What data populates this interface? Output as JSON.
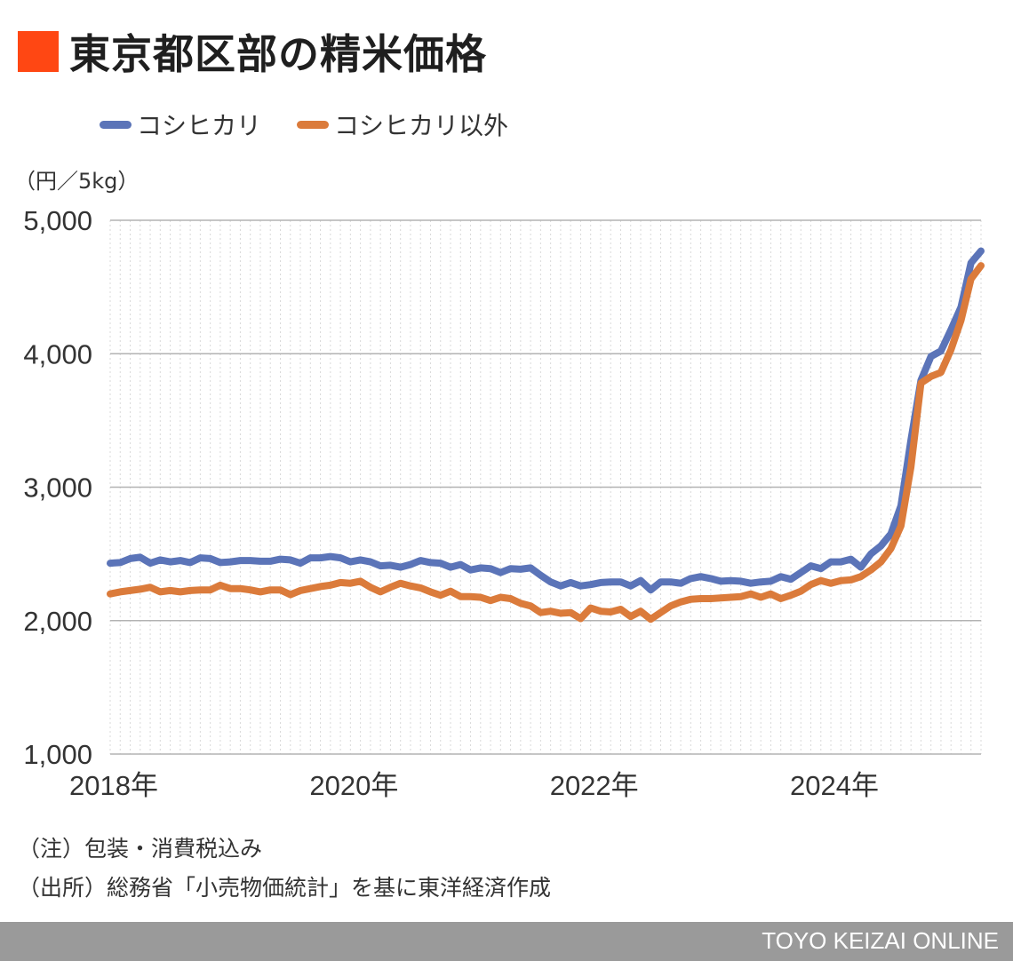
{
  "title": "東京都区部の精米価格",
  "colors": {
    "title_square": "#ff4713",
    "series_1": "#5b74b8",
    "series_2": "#db7b3b",
    "grid": "#b3b3b3",
    "minor_grid": "#d9d9d9",
    "footer_bg": "#9a9a9a"
  },
  "unit_label": "（円／5kg）",
  "notes": {
    "note": "（注）包装・消費税込み",
    "source": "（出所）総務省「小売物価統計」を基に東洋経済作成"
  },
  "footer": "TOYO KEIZAI ONLINE",
  "chart_data": {
    "type": "line",
    "title": "東京都区部の精米価格",
    "ylabel": "（円／5kg）",
    "ylim": [
      1000,
      5000
    ],
    "yticks": [
      "1,000",
      "2,000",
      "3,000",
      "4,000",
      "5,000"
    ],
    "xticks": [
      "2018年",
      "2020年",
      "2022年",
      "2024年"
    ],
    "x_start": "2018-01",
    "x_end": "2025-04",
    "grid": true,
    "legend_position": "top-left",
    "series": [
      {
        "name": "コシヒカリ",
        "color": "#5b74b8",
        "values": [
          2430,
          2435,
          2465,
          2475,
          2430,
          2455,
          2440,
          2450,
          2435,
          2470,
          2465,
          2435,
          2440,
          2450,
          2450,
          2445,
          2445,
          2460,
          2455,
          2430,
          2470,
          2470,
          2480,
          2470,
          2440,
          2455,
          2440,
          2410,
          2415,
          2400,
          2420,
          2450,
          2435,
          2430,
          2400,
          2420,
          2380,
          2395,
          2390,
          2360,
          2390,
          2385,
          2395,
          2340,
          2290,
          2260,
          2285,
          2260,
          2270,
          2285,
          2290,
          2290,
          2260,
          2300,
          2230,
          2290,
          2290,
          2280,
          2315,
          2330,
          2315,
          2295,
          2300,
          2295,
          2280,
          2290,
          2295,
          2330,
          2310,
          2360,
          2410,
          2390,
          2440,
          2440,
          2460,
          2400,
          2500,
          2560,
          2650,
          2860,
          3350,
          3800,
          3980,
          4020,
          4180,
          4350,
          4680,
          4770
        ]
      },
      {
        "name": "コシヒカリ以外",
        "color": "#db7b3b",
        "values": [
          2200,
          2215,
          2225,
          2235,
          2250,
          2215,
          2225,
          2215,
          2225,
          2230,
          2230,
          2265,
          2240,
          2240,
          2230,
          2215,
          2230,
          2230,
          2195,
          2225,
          2240,
          2255,
          2265,
          2285,
          2280,
          2295,
          2250,
          2215,
          2250,
          2280,
          2260,
          2245,
          2215,
          2190,
          2220,
          2180,
          2180,
          2175,
          2150,
          2175,
          2165,
          2130,
          2110,
          2060,
          2070,
          2055,
          2060,
          2015,
          2095,
          2070,
          2065,
          2085,
          2030,
          2070,
          2010,
          2060,
          2110,
          2140,
          2160,
          2165,
          2165,
          2170,
          2175,
          2180,
          2200,
          2175,
          2200,
          2165,
          2190,
          2220,
          2270,
          2300,
          2280,
          2300,
          2305,
          2330,
          2380,
          2440,
          2540,
          2710,
          3150,
          3780,
          3830,
          3860,
          4030,
          4250,
          4560,
          4660
        ]
      }
    ]
  }
}
